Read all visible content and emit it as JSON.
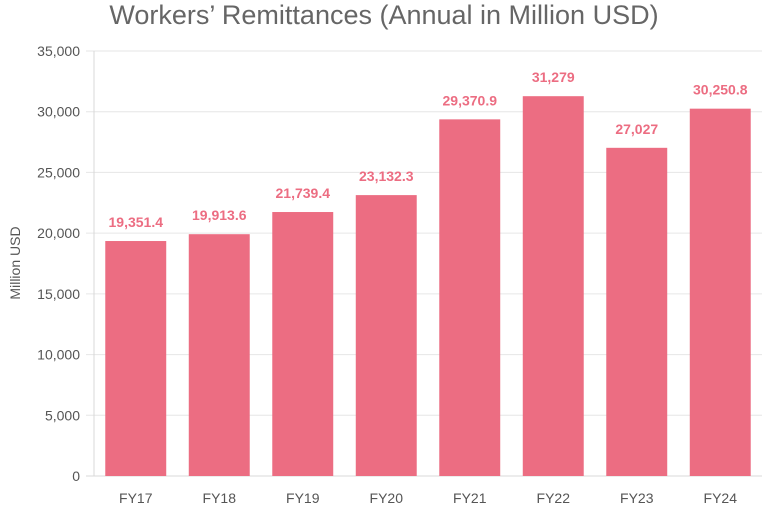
{
  "chart_data": {
    "type": "bar",
    "title": "Workers’ Remittances (Annual in Million USD)",
    "xlabel": "",
    "ylabel": "Million USD",
    "categories": [
      "FY17",
      "FY18",
      "FY19",
      "FY20",
      "FY21",
      "FY22",
      "FY23",
      "FY24"
    ],
    "values": [
      19351.4,
      19913.6,
      21739.4,
      23132.3,
      29370.9,
      31279,
      27027,
      30250.8
    ],
    "value_labels": [
      "19,351.4",
      "19,913.6",
      "21,739.4",
      "23,132.3",
      "29,370.9",
      "31,279",
      "27,027",
      "30,250.8"
    ],
    "ylim": [
      0,
      35000
    ],
    "yticks": [
      0,
      5000,
      10000,
      15000,
      20000,
      25000,
      30000,
      35000
    ],
    "ytick_labels": [
      "0",
      "5,000",
      "10,000",
      "15,000",
      "20,000",
      "25,000",
      "30,000",
      "35,000"
    ],
    "grid": true,
    "legend": "none",
    "colors": {
      "bar": "#ec6d82",
      "value_label": "#ec6d82",
      "title": "#666666",
      "tick": "#555555",
      "grid": "#e6e6e6"
    }
  }
}
